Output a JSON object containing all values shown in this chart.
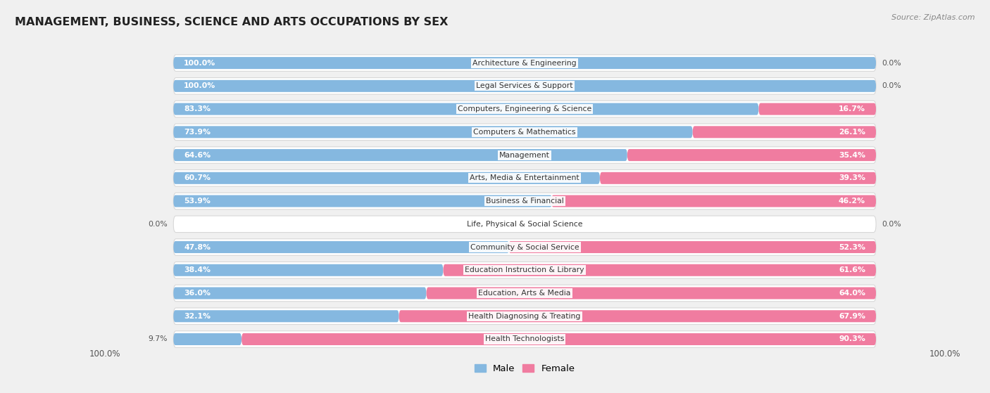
{
  "title": "MANAGEMENT, BUSINESS, SCIENCE AND ARTS OCCUPATIONS BY SEX",
  "source": "Source: ZipAtlas.com",
  "categories": [
    "Architecture & Engineering",
    "Legal Services & Support",
    "Computers, Engineering & Science",
    "Computers & Mathematics",
    "Management",
    "Arts, Media & Entertainment",
    "Business & Financial",
    "Life, Physical & Social Science",
    "Community & Social Service",
    "Education Instruction & Library",
    "Education, Arts & Media",
    "Health Diagnosing & Treating",
    "Health Technologists"
  ],
  "male_pct": [
    100.0,
    100.0,
    83.3,
    73.9,
    64.6,
    60.7,
    53.9,
    0.0,
    47.8,
    38.4,
    36.0,
    32.1,
    9.7
  ],
  "female_pct": [
    0.0,
    0.0,
    16.7,
    26.1,
    35.4,
    39.3,
    46.2,
    0.0,
    52.3,
    61.6,
    64.0,
    67.9,
    90.3
  ],
  "male_color": "#85b8e0",
  "female_color": "#f07ca0",
  "bg_color": "#f0f0f0",
  "row_bg": "#ffffff",
  "row_border": "#d8d8d8",
  "label_outside_color": "#555555",
  "label_inside_color": "#ffffff",
  "cat_label_color": "#333333",
  "title_color": "#222222",
  "source_color": "#888888",
  "legend_male_color": "#85b8e0",
  "legend_female_color": "#f07ca0"
}
